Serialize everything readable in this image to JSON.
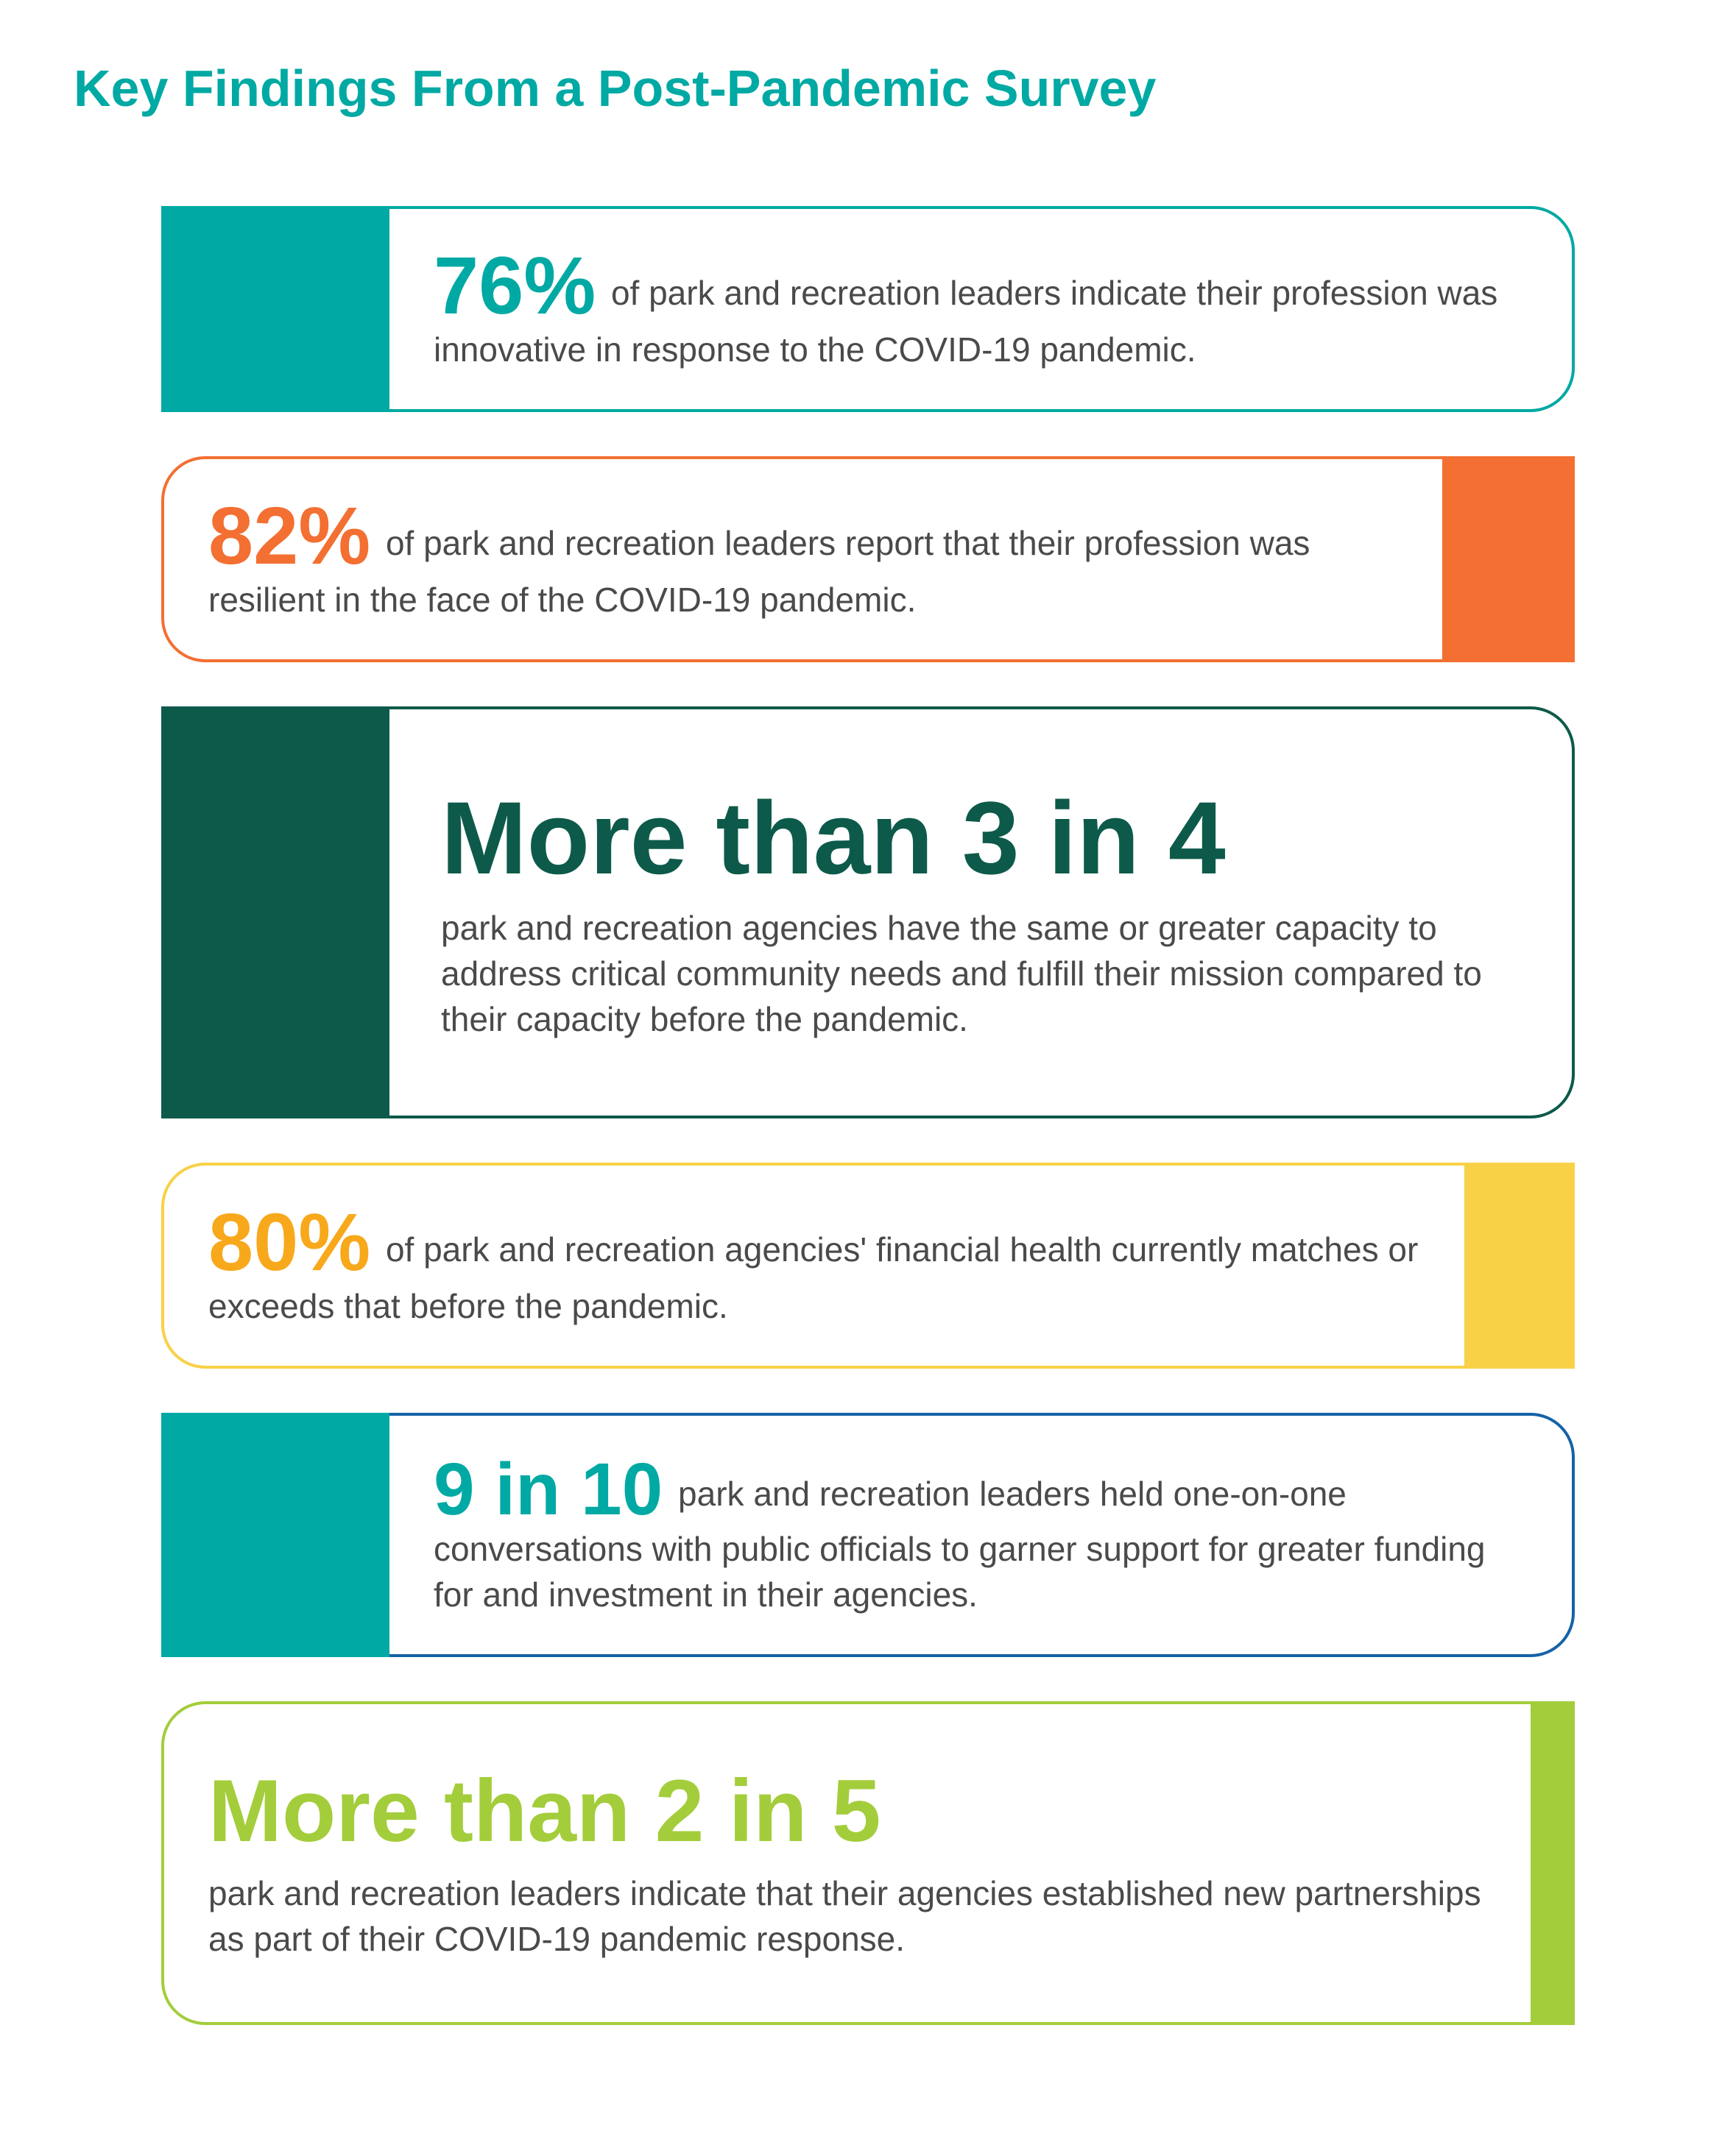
{
  "title": {
    "text": "Key Findings From a Post-Pandemic Survey",
    "color": "#00a9a3"
  },
  "cards": [
    {
      "side": "left",
      "block_color": "#00a9a3",
      "block_width": 310,
      "border_color": "#00a9a3",
      "stat": "76%",
      "stat_color": "#00a9a3",
      "text_after": " of park and recreation leaders indicate their profession was innovative in response to the COVID-19 pandemic."
    },
    {
      "side": "right",
      "block_color": "#f36f32",
      "block_width": 180,
      "border_color": "#f36f32",
      "stat": "82%",
      "stat_color": "#f36f32",
      "text_after": " of park and recreation leaders report that their profession was resilient in the face of the COVID-19 pandemic."
    },
    {
      "side": "left",
      "block_color": "#0d5a4a",
      "block_width": 310,
      "border_color": "#0d5a4a",
      "headline": "More than 3 in 4",
      "headline_color": "#0d5a4a",
      "body": "park and recreation agencies have the same or greater capacity to address critical community needs and fulfill their mission compared to their capacity before the pandemic."
    },
    {
      "side": "right",
      "block_color": "#f8d146",
      "block_width": 150,
      "border_color": "#f8d146",
      "stat": "80%",
      "stat_color": "#f8a81b",
      "text_after": " of park and recreation agencies' financial health currently matches or exceeds that before the pandemic."
    },
    {
      "side": "left",
      "block_color": "#00a9a3",
      "block_width": 310,
      "border_color": "#1662a7",
      "stat": "9 in 10",
      "stat_color": "#00a9a3",
      "text_after": " park and recreation leaders held one-on-one conversations with public officials to garner support for greater funding for and investment in their agencies."
    },
    {
      "side": "right",
      "block_color": "#a3cd3b",
      "block_width": 60,
      "border_color": "#a3cd3b",
      "headline": "More than 2 in 5",
      "headline_color": "#a3cd3b",
      "body": "park and recreation leaders indicate that their agencies established new partnerships as part of their COVID-19 pandemic response."
    }
  ]
}
